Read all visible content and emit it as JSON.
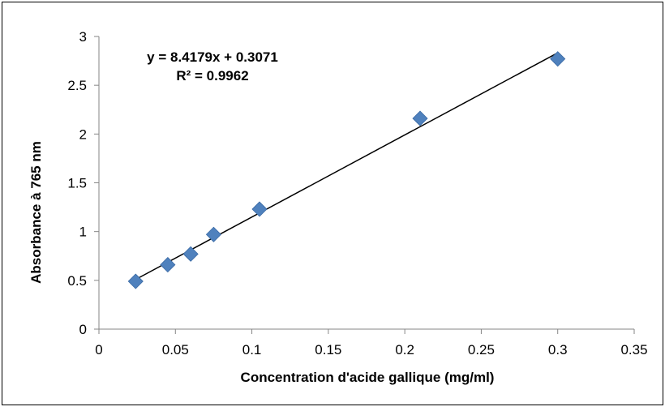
{
  "chart_data": {
    "type": "scatter",
    "title": "",
    "xlabel": "Concentration  d'acide gallique (mg/ml)",
    "ylabel": "Absorbance à 765 nm",
    "xlim": [
      0,
      0.35
    ],
    "ylim": [
      0,
      3
    ],
    "x_ticks": [
      {
        "value": 0,
        "label": "0"
      },
      {
        "value": 0.05,
        "label": "0.05"
      },
      {
        "value": 0.1,
        "label": "0.1"
      },
      {
        "value": 0.15,
        "label": "0.15"
      },
      {
        "value": 0.2,
        "label": "0.2"
      },
      {
        "value": 0.25,
        "label": "0.25"
      },
      {
        "value": 0.3,
        "label": "0.3"
      },
      {
        "value": 0.35,
        "label": "0.35"
      }
    ],
    "y_ticks": [
      {
        "value": 0,
        "label": "0"
      },
      {
        "value": 0.5,
        "label": "0.5"
      },
      {
        "value": 1,
        "label": "1"
      },
      {
        "value": 1.5,
        "label": "1.5"
      },
      {
        "value": 2,
        "label": "2"
      },
      {
        "value": 2.5,
        "label": "2.5"
      },
      {
        "value": 3,
        "label": "3"
      }
    ],
    "grid": false,
    "legend": "none",
    "marker": "diamond",
    "marker_color": "#4F81BD",
    "trendline_color": "#000000",
    "points": [
      {
        "x": 0.024,
        "y": 0.49
      },
      {
        "x": 0.045,
        "y": 0.66
      },
      {
        "x": 0.06,
        "y": 0.77
      },
      {
        "x": 0.075,
        "y": 0.97
      },
      {
        "x": 0.105,
        "y": 1.23
      },
      {
        "x": 0.21,
        "y": 2.16
      },
      {
        "x": 0.3,
        "y": 2.77
      }
    ],
    "trendline": {
      "type": "linear",
      "slope": 8.4179,
      "intercept": 0.3071,
      "x_range": [
        0.024,
        0.3
      ]
    },
    "annotations": {
      "equation": "y = 8.4179x + 0.3071",
      "r_squared": "R² = 0.9962"
    }
  }
}
